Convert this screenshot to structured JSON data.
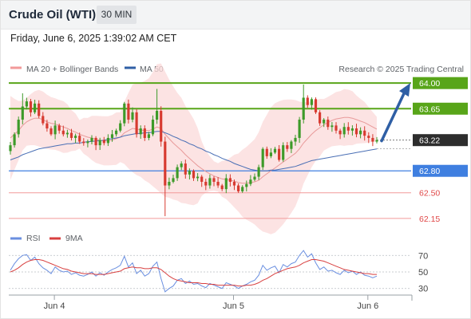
{
  "header": {
    "instrument": "Crude Oil (WTI)",
    "timeframe": "30 MIN"
  },
  "datetime": "Friday, June 6, 2025 1:39:02 AM CET",
  "legend": {
    "ma20": "MA 20 + Bollinger Bands",
    "ma50": "MA 50",
    "source": "Research © 2025 Trading Central"
  },
  "rsi_legend": {
    "rsi": "RSI",
    "ma9": "9MA"
  },
  "colors": {
    "up": "#3d9a29",
    "down": "#d73a30",
    "band": "#fbdada",
    "ma20": "#e89a9a",
    "ma50": "#4a6fb5",
    "resistance": "#58a519",
    "support": "#3f7fe0",
    "weak_support": "#f29a9a",
    "arrow": "#2f5fa5",
    "rsi": "#6a8fe0",
    "rsi_ma": "#d84040"
  },
  "chart_data": [
    {
      "type": "candlestick",
      "ylim": [
        62.05,
        64.1
      ],
      "x_ticks": [
        "Jun 4",
        "Jun 5",
        "Jun 6"
      ],
      "current_price": 63.22,
      "levels": [
        {
          "value": 64.0,
          "label": "64.00",
          "kind": "resistance"
        },
        {
          "value": 63.65,
          "label": "63.65",
          "kind": "resistance"
        },
        {
          "value": 63.22,
          "label": "63.22",
          "kind": "current"
        },
        {
          "value": 62.8,
          "label": "62.80",
          "kind": "support"
        },
        {
          "value": 62.5,
          "label": "62.50",
          "kind": "weak_support"
        },
        {
          "value": 62.15,
          "label": "62.15",
          "kind": "weak_support"
        }
      ],
      "projection": {
        "from": 63.22,
        "to": 64.0
      },
      "close": [
        63.15,
        63.3,
        63.5,
        63.68,
        63.75,
        63.6,
        63.72,
        63.55,
        63.45,
        63.38,
        63.3,
        63.42,
        63.35,
        63.3,
        63.32,
        63.25,
        63.28,
        63.2,
        63.18,
        63.2,
        63.25,
        63.15,
        63.22,
        63.18,
        63.25,
        63.3,
        63.35,
        63.45,
        63.72,
        63.5,
        63.6,
        63.3,
        63.38,
        63.25,
        63.3,
        63.5,
        63.62,
        63.2,
        62.6,
        62.65,
        62.7,
        62.85,
        62.9,
        62.75,
        62.8,
        62.7,
        62.72,
        62.65,
        62.6,
        62.7,
        62.65,
        62.6,
        62.55,
        62.7,
        62.65,
        62.6,
        62.52,
        62.58,
        62.62,
        62.68,
        62.72,
        62.85,
        63.1,
        63.0,
        63.05,
        63.1,
        62.95,
        63.15,
        63.1,
        63.2,
        63.25,
        63.5,
        63.8,
        63.7,
        63.78,
        63.6,
        63.45,
        63.5,
        63.4,
        63.42,
        63.35,
        63.3,
        63.4,
        63.35,
        63.38,
        63.3,
        63.35,
        63.28,
        63.25,
        63.2,
        63.22
      ],
      "ma20": [
        63.25,
        63.3,
        63.35,
        63.42,
        63.47,
        63.5,
        63.52,
        63.52,
        63.5,
        63.47,
        63.45,
        63.44,
        63.42,
        63.4,
        63.38,
        63.35,
        63.33,
        63.3,
        63.28,
        63.26,
        63.25,
        63.23,
        63.22,
        63.21,
        63.21,
        63.22,
        63.24,
        63.26,
        63.32,
        63.35,
        63.38,
        63.37,
        63.36,
        63.35,
        63.35,
        63.37,
        63.4,
        63.38,
        63.3,
        63.24,
        63.18,
        63.13,
        63.08,
        63.02,
        62.97,
        62.92,
        62.87,
        62.83,
        62.79,
        62.76,
        62.73,
        62.71,
        62.69,
        62.68,
        62.67,
        62.66,
        62.64,
        62.63,
        62.63,
        62.64,
        62.65,
        62.67,
        62.72,
        62.76,
        62.8,
        62.84,
        62.88,
        62.92,
        62.96,
        63.0,
        63.04,
        63.1,
        63.18,
        63.24,
        63.3,
        63.35,
        63.39,
        63.43,
        63.46,
        63.49,
        63.51,
        63.52,
        63.53,
        63.53,
        63.52,
        63.5,
        63.48,
        63.46,
        63.43,
        63.4,
        63.37
      ],
      "ma50": [
        62.95,
        62.97,
        62.99,
        63.02,
        63.04,
        63.06,
        63.08,
        63.1,
        63.11,
        63.12,
        63.13,
        63.14,
        63.15,
        63.16,
        63.17,
        63.17,
        63.18,
        63.18,
        63.19,
        63.2,
        63.2,
        63.21,
        63.21,
        63.22,
        63.23,
        63.24,
        63.25,
        63.26,
        63.28,
        63.29,
        63.3,
        63.31,
        63.31,
        63.32,
        63.32,
        63.33,
        63.34,
        63.34,
        63.32,
        63.3,
        63.27,
        63.25,
        63.22,
        63.2,
        63.17,
        63.15,
        63.12,
        63.1,
        63.07,
        63.05,
        63.02,
        63.0,
        62.97,
        62.95,
        62.93,
        62.9,
        62.88,
        62.86,
        62.84,
        62.82,
        62.81,
        62.8,
        62.8,
        62.8,
        62.81,
        62.81,
        62.82,
        62.83,
        62.84,
        62.85,
        62.86,
        62.88,
        62.9,
        62.92,
        62.94,
        62.95,
        62.96,
        62.97,
        62.98,
        62.99,
        63.0,
        63.01,
        63.02,
        63.03,
        63.04,
        63.05,
        63.06,
        63.07,
        63.08,
        63.09,
        63.1
      ]
    },
    {
      "type": "line",
      "ylim": [
        22,
        78
      ],
      "y_ticks": [
        70,
        50,
        30
      ],
      "series": [
        {
          "name": "RSI",
          "values": [
            52,
            60,
            66,
            70,
            71,
            64,
            68,
            60,
            55,
            52,
            48,
            56,
            52,
            50,
            51,
            47,
            49,
            46,
            45,
            47,
            50,
            45,
            49,
            46,
            50,
            53,
            55,
            58,
            69,
            56,
            61,
            48,
            52,
            45,
            48,
            57,
            62,
            42,
            26,
            30,
            33,
            40,
            42,
            36,
            39,
            35,
            36,
            33,
            31,
            36,
            34,
            32,
            30,
            37,
            35,
            33,
            30,
            33,
            35,
            38,
            40,
            46,
            58,
            52,
            55,
            57,
            49,
            59,
            56,
            60,
            62,
            70,
            76,
            68,
            72,
            61,
            53,
            56,
            51,
            52,
            49,
            47,
            52,
            49,
            51,
            47,
            50,
            46,
            45,
            43,
            45
          ]
        },
        {
          "name": "9MA",
          "values": [
            50,
            52,
            55,
            59,
            62,
            64,
            65,
            65,
            64,
            62,
            60,
            58,
            56,
            54,
            53,
            51,
            50,
            49,
            48,
            48,
            48,
            47,
            47,
            47,
            48,
            49,
            50,
            51,
            54,
            55,
            56,
            55,
            55,
            54,
            54,
            55,
            55,
            53,
            49,
            45,
            42,
            40,
            39,
            38,
            37,
            37,
            37,
            36,
            36,
            35,
            35,
            34,
            34,
            34,
            34,
            34,
            33,
            33,
            34,
            34,
            35,
            37,
            40,
            42,
            45,
            48,
            50,
            52,
            54,
            55,
            56,
            58,
            61,
            63,
            65,
            65,
            64,
            63,
            61,
            59,
            57,
            55,
            53,
            52,
            51,
            50,
            49,
            48,
            48,
            47,
            47
          ]
        }
      ]
    }
  ]
}
